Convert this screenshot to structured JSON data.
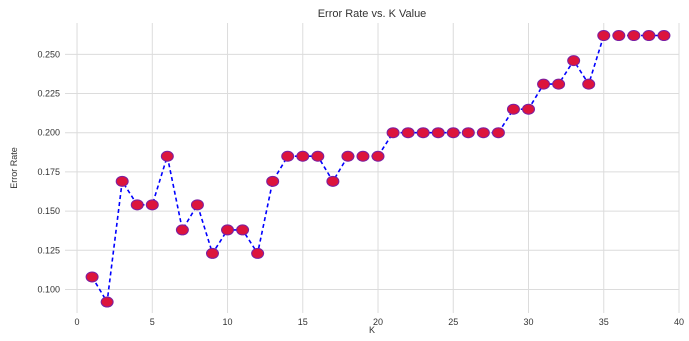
{
  "chart_data": {
    "type": "line",
    "title": "Error Rate vs. K Value",
    "xlabel": "K",
    "ylabel": "Error Rate",
    "xlim": [
      -0.8,
      40
    ],
    "ylim": [
      0.085,
      0.27
    ],
    "x_ticks": [
      0,
      5,
      10,
      15,
      20,
      25,
      30,
      35,
      40
    ],
    "y_ticks": [
      0.1,
      0.125,
      0.15,
      0.175,
      0.2,
      0.225,
      0.25
    ],
    "y_tick_labels": [
      "0.100",
      "0.125",
      "0.150",
      "0.175",
      "0.200",
      "0.225",
      "0.250"
    ],
    "grid": true,
    "line_color": "#0000ff",
    "line_style": "dashed",
    "marker_face_color": "#dc143c",
    "marker_edge_color": "#7b1fa2",
    "series": [
      {
        "x": [
          1,
          2,
          3,
          4,
          5,
          6,
          7,
          8,
          9,
          10,
          11,
          12,
          13,
          14,
          15,
          16,
          17,
          18,
          19,
          20,
          21,
          22,
          23,
          24,
          25,
          26,
          27,
          28,
          29,
          30,
          31,
          32,
          33,
          34,
          35,
          36,
          37,
          38,
          39
        ],
        "values": [
          0.108,
          0.092,
          0.169,
          0.154,
          0.154,
          0.185,
          0.138,
          0.154,
          0.123,
          0.138,
          0.138,
          0.123,
          0.169,
          0.185,
          0.185,
          0.185,
          0.169,
          0.185,
          0.185,
          0.185,
          0.2,
          0.2,
          0.2,
          0.2,
          0.2,
          0.2,
          0.2,
          0.2,
          0.215,
          0.215,
          0.231,
          0.231,
          0.246,
          0.231,
          0.262,
          0.262,
          0.262,
          0.262,
          0.262
        ]
      }
    ]
  }
}
